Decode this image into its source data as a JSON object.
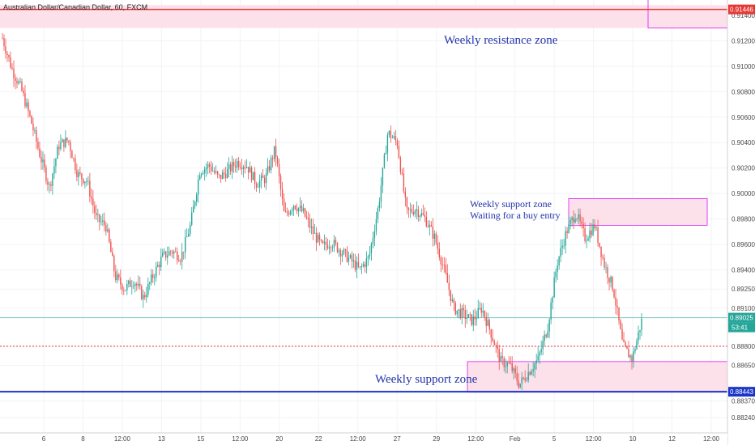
{
  "title": "Australian Dollar/Canadian Dollar, 60, FXCM",
  "chart_data": {
    "type": "candlestick",
    "ylim": [
      0.8812,
      0.9152
    ],
    "y_ticks": [
      "0.91400",
      "0.91200",
      "0.91000",
      "0.90800",
      "0.90600",
      "0.90400",
      "0.90200",
      "0.90000",
      "0.89800",
      "0.89600",
      "0.89400",
      "0.89250",
      "0.89100",
      "0.88800",
      "0.88650",
      "0.88370",
      "0.88240"
    ],
    "x_ticks": [
      "6",
      "8",
      "12:00",
      "13",
      "15",
      "12:00",
      "20",
      "22",
      "12:00",
      "27",
      "29",
      "12:00",
      "Feb",
      "5",
      "12:00",
      "10",
      "12",
      "12:00"
    ],
    "price_path": [
      0.9122,
      0.9098,
      0.9082,
      0.9058,
      0.903,
      0.9005,
      0.9038,
      0.9042,
      0.9015,
      0.901,
      0.898,
      0.8975,
      0.8935,
      0.8925,
      0.8932,
      0.8918,
      0.8935,
      0.895,
      0.8955,
      0.895,
      0.8975,
      0.9018,
      0.9022,
      0.9012,
      0.9018,
      0.9025,
      0.9022,
      0.9008,
      0.9012,
      0.9035,
      0.8982,
      0.8992,
      0.8985,
      0.897,
      0.8958,
      0.8962,
      0.8955,
      0.8948,
      0.894,
      0.895,
      0.899,
      0.9048,
      0.904,
      0.8985,
      0.8988,
      0.898,
      0.8965,
      0.894,
      0.891,
      0.8905,
      0.89,
      0.891,
      0.889,
      0.8868,
      0.8865,
      0.885,
      0.886,
      0.887,
      0.8895,
      0.8945,
      0.897,
      0.8985,
      0.8965,
      0.8975,
      0.8945,
      0.8925,
      0.888,
      0.887,
      0.89
    ],
    "current_price": "0.89025",
    "countdown": "53:41",
    "resistance_price": "0.91446",
    "support_price": "0.88443",
    "dotted_level": 0.888,
    "resistance_zone": [
      0.913,
      0.9148
    ],
    "support_zone_lower": [
      0.8844,
      0.8868
    ],
    "support_zone_upper": [
      0.8975,
      0.8996
    ],
    "annotations": {
      "resistance": "Weekly resistance zone",
      "support": "Weekly support zone",
      "upper_zone_line1": "Weekly support zone",
      "upper_zone_line2": "Waiting for a buy entry"
    }
  },
  "colors": {
    "up": "#26a69a",
    "down": "#ef5350",
    "resistance_line": "#e53935",
    "support_line": "#1a35c8",
    "zone_fill": "#fde1ea",
    "zone_border": "#e040fb",
    "current": "#26a69a",
    "dotted": "#e53935"
  }
}
